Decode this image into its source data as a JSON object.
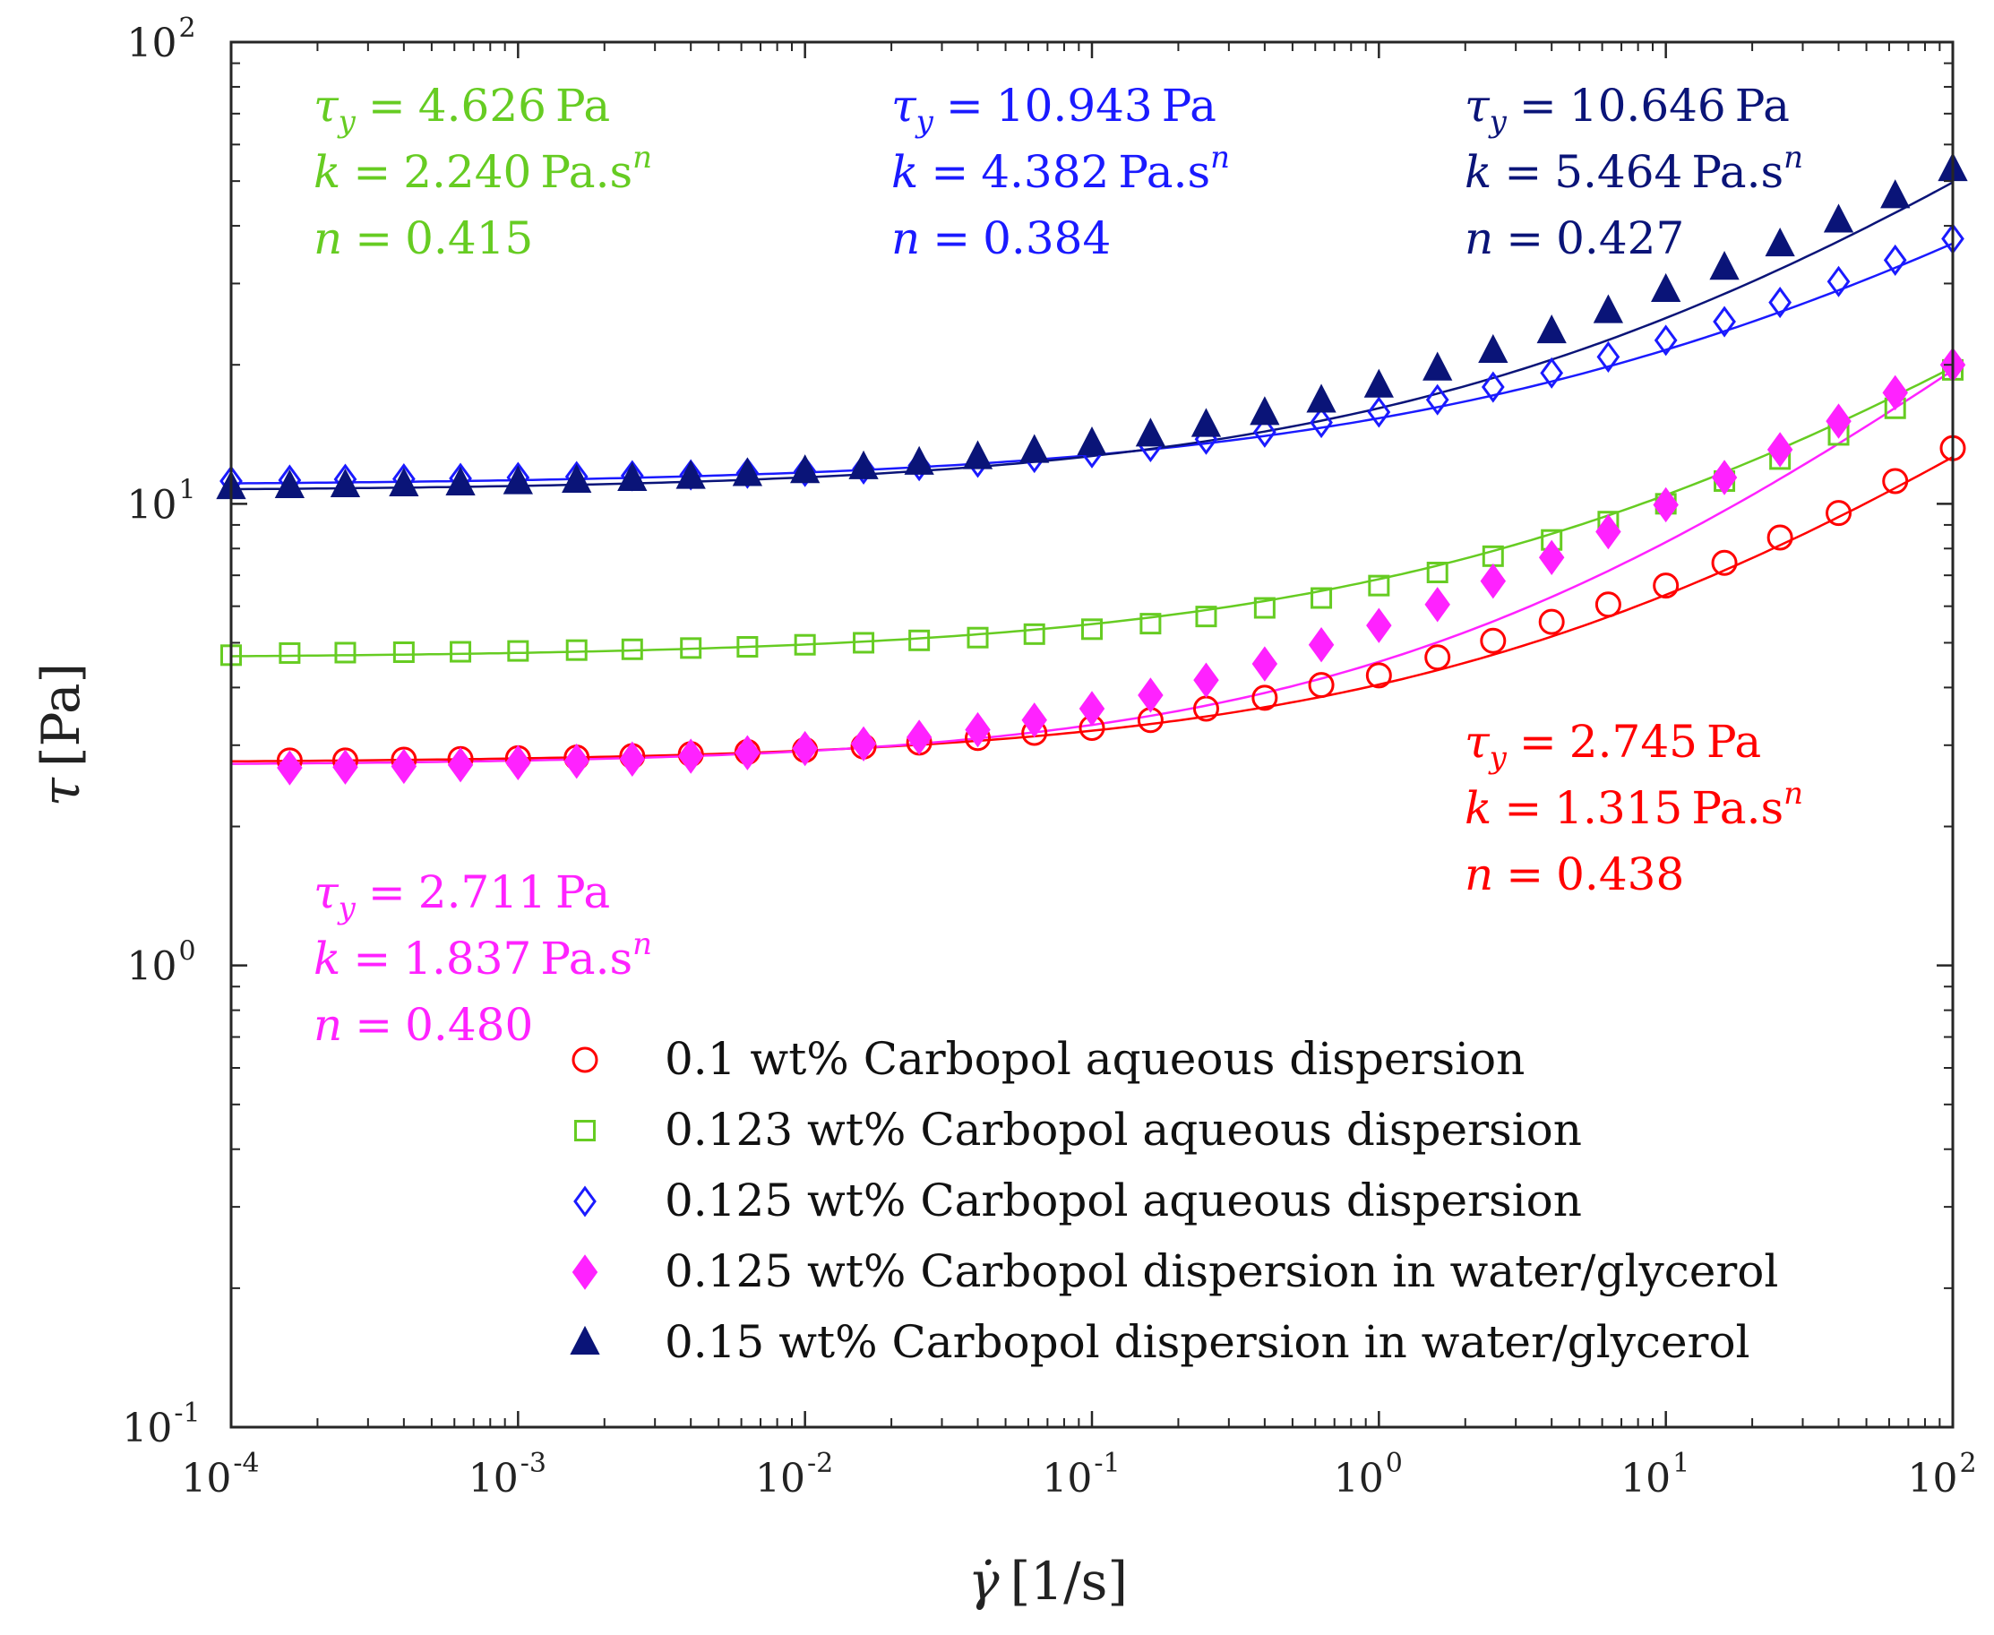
{
  "chart_data": {
    "type": "scatter",
    "x_scale": "log",
    "y_scale": "log",
    "xlim": [
      0.0001,
      100
    ],
    "ylim": [
      0.1,
      100
    ],
    "xlabel": {
      "main": "γ̇",
      "unit": "[1/s]"
    },
    "ylabel": {
      "main": "τ",
      "unit": "[Pa]"
    },
    "x_tick_exponents": [
      "-4",
      "-3",
      "-2",
      "-1",
      "0",
      "1",
      "2"
    ],
    "y_tick_exponents": [
      "-1",
      "0",
      "1",
      "2"
    ],
    "tick_base": "10",
    "legend_position": "lower-right",
    "series": [
      {
        "name": "0.1 wt% Carbopol aqueous dispersion",
        "marker": "circle-open",
        "color": "#ff0000",
        "fit": {
          "tau_y": 2.745,
          "k": 1.315,
          "n": 0.438
        },
        "x": [
          0.00016,
          0.00025,
          0.0004,
          0.00063,
          0.001,
          0.0016,
          0.0025,
          0.004,
          0.0063,
          0.01,
          0.016,
          0.025,
          0.04,
          0.063,
          0.1,
          0.16,
          0.25,
          0.4,
          0.63,
          1,
          1.6,
          2.5,
          4,
          6.3,
          10,
          16,
          25,
          40,
          63,
          100
        ],
        "y": [
          2.78,
          2.78,
          2.79,
          2.8,
          2.81,
          2.82,
          2.84,
          2.87,
          2.9,
          2.93,
          2.98,
          3.04,
          3.11,
          3.19,
          3.27,
          3.4,
          3.6,
          3.8,
          4.05,
          4.25,
          4.65,
          5.05,
          5.55,
          6.05,
          6.65,
          7.45,
          8.45,
          9.55,
          11.2,
          13.2
        ]
      },
      {
        "name": "0.123 wt% Carbopol aqueous dispersion",
        "marker": "square-open",
        "color": "#66cc22",
        "fit": {
          "tau_y": 4.626,
          "k": 2.24,
          "n": 0.415
        },
        "x": [
          0.0001,
          0.00016,
          0.00025,
          0.0004,
          0.00063,
          0.001,
          0.0016,
          0.0025,
          0.004,
          0.0063,
          0.01,
          0.016,
          0.025,
          0.04,
          0.063,
          0.1,
          0.16,
          0.25,
          0.4,
          0.63,
          1,
          1.6,
          2.5,
          4,
          6.3,
          10,
          16,
          25,
          40,
          63,
          100
        ],
        "y": [
          4.7,
          4.75,
          4.76,
          4.77,
          4.78,
          4.8,
          4.82,
          4.84,
          4.87,
          4.9,
          4.95,
          5.0,
          5.06,
          5.13,
          5.22,
          5.35,
          5.5,
          5.7,
          5.95,
          6.25,
          6.65,
          7.1,
          7.7,
          8.35,
          9.15,
          10.0,
          11.2,
          12.5,
          14.1,
          16.1,
          19.5
        ]
      },
      {
        "name": "0.125 wt% Carbopol aqueous dispersion",
        "marker": "diamond-open",
        "color": "#1a1aff",
        "fit": {
          "tau_y": 10.943,
          "k": 4.382,
          "n": 0.384
        },
        "x": [
          0.0001,
          0.00016,
          0.00025,
          0.0004,
          0.00063,
          0.001,
          0.0016,
          0.0025,
          0.004,
          0.0063,
          0.01,
          0.016,
          0.025,
          0.04,
          0.063,
          0.1,
          0.16,
          0.25,
          0.4,
          0.63,
          1,
          1.6,
          2.5,
          4,
          6.3,
          10,
          16,
          25,
          40,
          63,
          100
        ],
        "y": [
          11.2,
          11.25,
          11.3,
          11.32,
          11.35,
          11.4,
          11.45,
          11.5,
          11.55,
          11.65,
          11.75,
          11.9,
          12.1,
          12.3,
          12.6,
          12.9,
          13.3,
          13.8,
          14.3,
          15.0,
          15.8,
          16.8,
          17.9,
          19.2,
          20.8,
          22.6,
          24.8,
          27.3,
          30.3,
          33.7,
          37.5
        ]
      },
      {
        "name": "0.125 wt% Carbopol dispersion in water/glycerol",
        "marker": "diamond-filled",
        "color": "#ff22ff",
        "fit": {
          "tau_y": 2.711,
          "k": 1.837,
          "n": 0.48
        },
        "x": [
          0.00016,
          0.00025,
          0.0004,
          0.00063,
          0.001,
          0.0016,
          0.0025,
          0.004,
          0.0063,
          0.01,
          0.016,
          0.025,
          0.04,
          0.063,
          0.1,
          0.16,
          0.25,
          0.4,
          0.63,
          1,
          1.6,
          2.5,
          4,
          6.3,
          10,
          16,
          25,
          40,
          63,
          100
        ],
        "y": [
          2.68,
          2.69,
          2.7,
          2.72,
          2.75,
          2.77,
          2.8,
          2.84,
          2.89,
          2.95,
          3.02,
          3.12,
          3.24,
          3.4,
          3.6,
          3.85,
          4.15,
          4.5,
          4.95,
          5.45,
          6.05,
          6.8,
          7.65,
          8.7,
          9.95,
          11.4,
          13.1,
          15.1,
          17.4,
          20.0
        ]
      },
      {
        "name": "0.15 wt% Carbopol dispersion in water/glycerol",
        "marker": "triangle-filled",
        "color": "#0a1478",
        "fit": {
          "tau_y": 10.646,
          "k": 5.464,
          "n": 0.427
        },
        "x": [
          0.0001,
          0.00016,
          0.00025,
          0.0004,
          0.00063,
          0.001,
          0.0016,
          0.0025,
          0.004,
          0.0063,
          0.01,
          0.016,
          0.025,
          0.04,
          0.063,
          0.1,
          0.16,
          0.25,
          0.4,
          0.63,
          1,
          1.6,
          2.5,
          4,
          6.3,
          10,
          16,
          25,
          40,
          63,
          100
        ],
        "y": [
          10.85,
          10.9,
          10.95,
          11.0,
          11.05,
          11.12,
          11.2,
          11.3,
          11.42,
          11.58,
          11.75,
          11.98,
          12.25,
          12.6,
          13.0,
          13.5,
          14.1,
          14.8,
          15.7,
          16.7,
          18.0,
          19.6,
          21.4,
          23.6,
          26.1,
          29.0,
          32.4,
          36.4,
          41.0,
          46.3,
          53.0
        ]
      }
    ],
    "annotations": [
      {
        "series": 1,
        "tau_y": "2.745",
        "k": "1.315",
        "n": "0.438",
        "color": "#ff0000",
        "position": "right-middle"
      },
      {
        "series": 2,
        "tau_y": "4.626",
        "k": "2.240",
        "n": "0.415",
        "color": "#66cc22",
        "position": "top-left"
      },
      {
        "series": 3,
        "tau_y": "10.943",
        "k": "4.382",
        "n": "0.384",
        "color": "#1a1aff",
        "position": "top-center"
      },
      {
        "series": 4,
        "tau_y": "2.711",
        "k": "1.837",
        "n": "0.480",
        "color": "#ff22ff",
        "position": "left-middle"
      },
      {
        "series": 5,
        "tau_y": "10.646",
        "k": "5.464",
        "n": "0.427",
        "color": "#0a1478",
        "position": "top-right"
      }
    ],
    "annotation_labels": {
      "tau": "τ",
      "tau_sub": "y",
      "k": "k",
      "n": "n",
      "eq": "=",
      "pa": "Pa",
      "pa_s": "Pa.s",
      "pa_s_exp": "n"
    }
  }
}
